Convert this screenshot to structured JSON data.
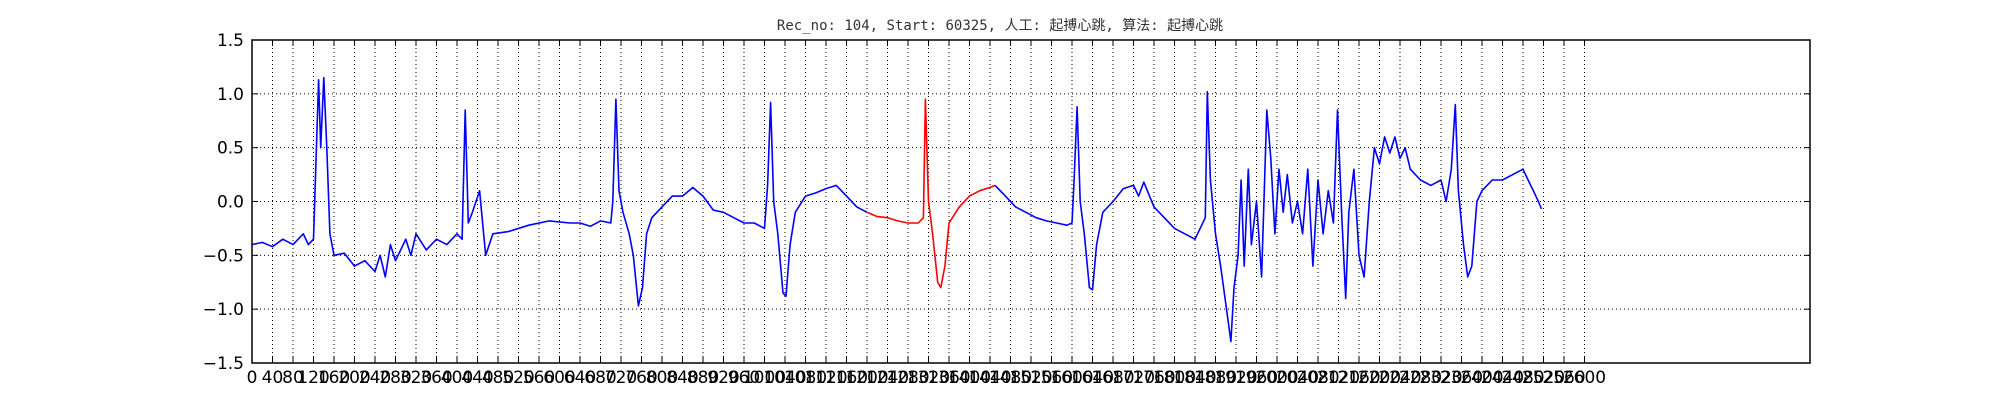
{
  "chart_data": {
    "type": "line",
    "title": "Rec_no: 104, Start: 60325, 人工: 起搏心跳, 算法: 起搏心跳",
    "xlabel": "",
    "ylabel": "",
    "xlim": [
      0,
      1520
    ],
    "ylim": [
      -1.5,
      1.5
    ],
    "grid": true,
    "x_tick_step": 20,
    "x_tick_labels": [
      "0",
      "40",
      "80",
      "120",
      "160",
      "200",
      "240",
      "280",
      "320",
      "360",
      "400",
      "440",
      "480",
      "520",
      "560",
      "600",
      "640",
      "680",
      "720",
      "760",
      "800",
      "840",
      "880",
      "920",
      "960",
      "1000",
      "1040",
      "1080",
      "1120",
      "1160",
      "1200",
      "1240",
      "1280",
      "1320",
      "1360",
      "1400",
      "1440",
      "1480",
      "1520",
      "1560",
      "1600",
      "1640",
      "1680",
      "1720",
      "1760",
      "1800",
      "1840",
      "1880",
      "1920",
      "1960",
      "2000",
      "2040",
      "2080",
      "2120",
      "2160",
      "2200",
      "2240",
      "2280",
      "2320",
      "2360",
      "2400",
      "2440",
      "2480",
      "2520",
      "2560",
      "2600"
    ],
    "y_ticks": [
      -1.5,
      -1.0,
      -0.5,
      0.0,
      0.5,
      1.0,
      1.5
    ],
    "y_tick_labels": [
      "−1.5",
      "−1.0",
      "−0.5",
      "0.0",
      "0.5",
      "1.0",
      "1.5"
    ],
    "series": [
      {
        "color": "#0000ff",
        "points": [
          [
            0,
            -0.4
          ],
          [
            10,
            -0.38
          ],
          [
            20,
            -0.42
          ],
          [
            30,
            -0.35
          ],
          [
            40,
            -0.4
          ],
          [
            50,
            -0.3
          ],
          [
            55,
            -0.4
          ],
          [
            60,
            -0.35
          ],
          [
            65,
            1.13
          ],
          [
            67,
            0.5
          ],
          [
            70,
            1.15
          ],
          [
            73,
            0.5
          ],
          [
            76,
            -0.3
          ],
          [
            80,
            -0.5
          ],
          [
            90,
            -0.48
          ],
          [
            100,
            -0.6
          ],
          [
            110,
            -0.55
          ],
          [
            120,
            -0.65
          ],
          [
            125,
            -0.5
          ],
          [
            130,
            -0.7
          ],
          [
            135,
            -0.4
          ],
          [
            140,
            -0.55
          ],
          [
            150,
            -0.35
          ],
          [
            155,
            -0.5
          ],
          [
            160,
            -0.3
          ],
          [
            170,
            -0.45
          ],
          [
            180,
            -0.35
          ],
          [
            190,
            -0.4
          ],
          [
            200,
            -0.3
          ],
          [
            205,
            -0.35
          ],
          [
            208,
            0.85
          ],
          [
            211,
            -0.2
          ],
          [
            215,
            -0.1
          ],
          [
            222,
            0.1
          ],
          [
            225,
            -0.2
          ],
          [
            228,
            -0.5
          ],
          [
            235,
            -0.3
          ],
          [
            250,
            -0.28
          ],
          [
            270,
            -0.22
          ],
          [
            290,
            -0.18
          ],
          [
            310,
            -0.2
          ],
          [
            320,
            -0.2
          ],
          [
            330,
            -0.23
          ],
          [
            340,
            -0.18
          ],
          [
            350,
            -0.2
          ],
          [
            352,
            0.0
          ],
          [
            355,
            0.95
          ],
          [
            358,
            0.1
          ],
          [
            362,
            -0.1
          ],
          [
            368,
            -0.3
          ],
          [
            372,
            -0.5
          ],
          [
            377,
            -0.97
          ],
          [
            381,
            -0.8
          ],
          [
            385,
            -0.3
          ],
          [
            390,
            -0.15
          ],
          [
            400,
            -0.05
          ],
          [
            410,
            0.05
          ],
          [
            420,
            0.05
          ],
          [
            430,
            0.13
          ],
          [
            440,
            0.05
          ],
          [
            450,
            -0.08
          ],
          [
            460,
            -0.1
          ],
          [
            470,
            -0.15
          ],
          [
            480,
            -0.2
          ],
          [
            490,
            -0.2
          ],
          [
            500,
            -0.25
          ],
          [
            503,
            0.15
          ],
          [
            506,
            0.92
          ],
          [
            509,
            0.0
          ],
          [
            513,
            -0.3
          ],
          [
            518,
            -0.85
          ],
          [
            521,
            -0.88
          ],
          [
            525,
            -0.4
          ],
          [
            530,
            -0.1
          ],
          [
            540,
            0.05
          ],
          [
            550,
            0.08
          ],
          [
            560,
            0.12
          ],
          [
            570,
            0.15
          ],
          [
            580,
            0.05
          ],
          [
            590,
            -0.05
          ],
          [
            600,
            -0.1
          ]
        ]
      },
      {
        "color": "#ff0000",
        "points": [
          [
            600,
            -0.1
          ],
          [
            610,
            -0.14
          ],
          [
            620,
            -0.15
          ],
          [
            630,
            -0.18
          ],
          [
            640,
            -0.2
          ],
          [
            650,
            -0.2
          ],
          [
            655,
            -0.15
          ],
          [
            657,
            0.95
          ],
          [
            660,
            0.0
          ],
          [
            664,
            -0.3
          ],
          [
            669,
            -0.75
          ],
          [
            672,
            -0.8
          ],
          [
            676,
            -0.6
          ],
          [
            680,
            -0.2
          ],
          [
            690,
            -0.05
          ],
          [
            700,
            0.05
          ],
          [
            710,
            0.1
          ],
          [
            720,
            0.13
          ],
          [
            725,
            0.15
          ]
        ]
      },
      {
        "color": "#0000ff",
        "points": [
          [
            725,
            0.15
          ],
          [
            735,
            0.05
          ],
          [
            745,
            -0.05
          ],
          [
            755,
            -0.1
          ],
          [
            765,
            -0.15
          ],
          [
            775,
            -0.18
          ],
          [
            785,
            -0.2
          ],
          [
            795,
            -0.22
          ],
          [
            800,
            -0.2
          ],
          [
            802,
            0.2
          ],
          [
            805,
            0.88
          ],
          [
            808,
            0.0
          ],
          [
            812,
            -0.3
          ],
          [
            817,
            -0.8
          ],
          [
            820,
            -0.82
          ],
          [
            824,
            -0.4
          ],
          [
            830,
            -0.1
          ],
          [
            840,
            0.0
          ],
          [
            850,
            0.12
          ],
          [
            860,
            0.15
          ],
          [
            865,
            0.05
          ],
          [
            870,
            0.18
          ],
          [
            880,
            -0.05
          ],
          [
            890,
            -0.15
          ],
          [
            900,
            -0.25
          ],
          [
            910,
            -0.3
          ],
          [
            920,
            -0.35
          ],
          [
            930,
            -0.15
          ],
          [
            932,
            1.02
          ],
          [
            935,
            0.2
          ],
          [
            940,
            -0.3
          ],
          [
            945,
            -0.6
          ],
          [
            950,
            -0.95
          ],
          [
            955,
            -1.3
          ],
          [
            958,
            -0.8
          ],
          [
            962,
            -0.5
          ],
          [
            965,
            0.2
          ],
          [
            968,
            -0.6
          ],
          [
            972,
            0.3
          ],
          [
            975,
            -0.4
          ],
          [
            980,
            0.0
          ],
          [
            985,
            -0.7
          ],
          [
            990,
            0.85
          ],
          [
            994,
            0.4
          ],
          [
            998,
            -0.3
          ],
          [
            1002,
            0.3
          ],
          [
            1006,
            -0.1
          ],
          [
            1010,
            0.25
          ],
          [
            1015,
            -0.2
          ],
          [
            1020,
            0.0
          ],
          [
            1025,
            -0.3
          ],
          [
            1030,
            0.3
          ],
          [
            1035,
            -0.6
          ],
          [
            1040,
            0.2
          ],
          [
            1045,
            -0.3
          ],
          [
            1050,
            0.1
          ],
          [
            1055,
            -0.2
          ],
          [
            1059,
            0.85
          ],
          [
            1063,
            -0.1
          ],
          [
            1067,
            -0.9
          ],
          [
            1070,
            -0.1
          ],
          [
            1075,
            0.3
          ],
          [
            1080,
            -0.5
          ],
          [
            1085,
            -0.7
          ],
          [
            1090,
            0.0
          ],
          [
            1095,
            0.5
          ],
          [
            1100,
            0.35
          ],
          [
            1105,
            0.6
          ],
          [
            1110,
            0.45
          ],
          [
            1115,
            0.6
          ],
          [
            1120,
            0.4
          ],
          [
            1125,
            0.5
          ],
          [
            1130,
            0.3
          ],
          [
            1140,
            0.2
          ],
          [
            1150,
            0.15
          ],
          [
            1160,
            0.2
          ],
          [
            1165,
            0.0
          ],
          [
            1170,
            0.3
          ],
          [
            1174,
            0.9
          ],
          [
            1177,
            0.1
          ],
          [
            1182,
            -0.4
          ],
          [
            1186,
            -0.7
          ],
          [
            1190,
            -0.6
          ],
          [
            1195,
            0.0
          ],
          [
            1200,
            0.1
          ],
          [
            1210,
            0.2
          ],
          [
            1220,
            0.2
          ],
          [
            1230,
            0.25
          ],
          [
            1240,
            0.3
          ],
          [
            1245,
            0.2
          ],
          [
            1250,
            0.1
          ],
          [
            1255,
            0.0
          ],
          [
            1258,
            -0.07
          ]
        ]
      }
    ]
  }
}
